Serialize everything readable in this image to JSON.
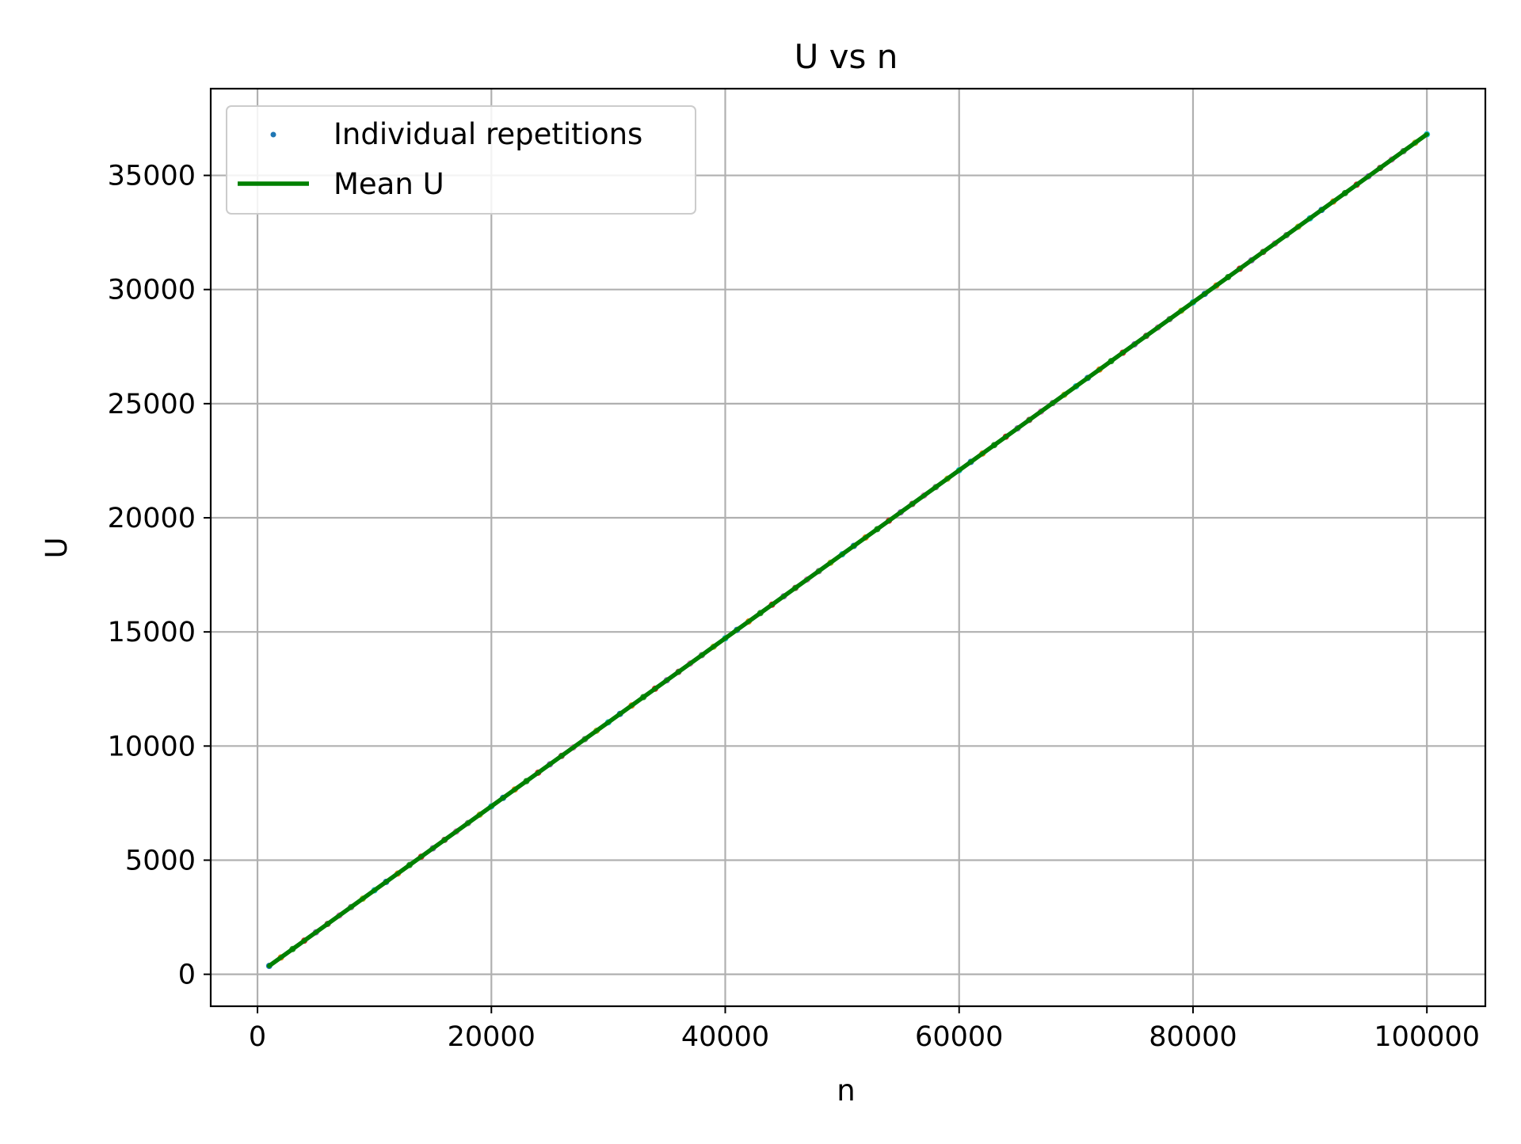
{
  "chart_data": {
    "type": "scatter",
    "title": "U vs n",
    "xlabel": "n",
    "ylabel": "U",
    "xlim": [
      -4000,
      105000
    ],
    "ylim": [
      -1400,
      38800
    ],
    "xticks": [
      0,
      20000,
      40000,
      60000,
      80000,
      100000
    ],
    "xtick_labels": [
      "0",
      "20000",
      "40000",
      "60000",
      "80000",
      "100000"
    ],
    "yticks": [
      0,
      5000,
      10000,
      15000,
      20000,
      25000,
      30000,
      35000
    ],
    "ytick_labels": [
      "0",
      "5000",
      "10000",
      "15000",
      "20000",
      "25000",
      "30000",
      "35000"
    ],
    "grid": true,
    "legend_position": "top-left",
    "legend": [
      "Individual repetitions",
      "Mean U"
    ],
    "series": [
      {
        "name": "Individual repetitions",
        "kind": "scatter",
        "color": "#1f77b4",
        "repetition_colors": [
          "#1f77b4",
          "#ff7f0e",
          "#2ca02c",
          "#d62728",
          "#9467bd",
          "#8c564b",
          "#e377c2",
          "#7f7f7f",
          "#bcbd22",
          "#17becf"
        ],
        "x": [
          1000,
          2000,
          3000,
          4000,
          5000,
          6000,
          7000,
          8000,
          9000,
          10000,
          11000,
          12000,
          13000,
          14000,
          15000,
          16000,
          17000,
          18000,
          19000,
          20000,
          21000,
          22000,
          23000,
          24000,
          25000,
          26000,
          27000,
          28000,
          29000,
          30000,
          31000,
          32000,
          33000,
          34000,
          35000,
          36000,
          37000,
          38000,
          39000,
          40000,
          41000,
          42000,
          43000,
          44000,
          45000,
          46000,
          47000,
          48000,
          49000,
          50000,
          51000,
          52000,
          53000,
          54000,
          55000,
          56000,
          57000,
          58000,
          59000,
          60000,
          61000,
          62000,
          63000,
          64000,
          65000,
          66000,
          67000,
          68000,
          69000,
          70000,
          71000,
          72000,
          73000,
          74000,
          75000,
          76000,
          77000,
          78000,
          79000,
          80000,
          81000,
          82000,
          83000,
          84000,
          85000,
          86000,
          87000,
          88000,
          89000,
          90000,
          91000,
          92000,
          93000,
          94000,
          95000,
          96000,
          97000,
          98000,
          99000,
          100000
        ],
        "y": [
          368,
          736,
          1104,
          1473,
          1840,
          2208,
          2577,
          2944,
          3312,
          3680,
          4048,
          4416,
          4785,
          5152,
          5520,
          5889,
          6256,
          6624,
          6992,
          7360,
          7729,
          8096,
          8464,
          8833,
          9200,
          9568,
          9937,
          10304,
          10672,
          11040,
          11409,
          11776,
          12144,
          12513,
          12880,
          13248,
          13617,
          13984,
          14352,
          14720,
          15089,
          15456,
          15824,
          16193,
          16560,
          16928,
          17297,
          17664,
          18032,
          18400,
          18769,
          19136,
          19504,
          19873,
          20240,
          20608,
          20977,
          21344,
          21712,
          22080,
          22449,
          22816,
          23184,
          23553,
          23920,
          24288,
          24657,
          25024,
          25392,
          25760,
          26129,
          26496,
          26864,
          27233,
          27600,
          27968,
          28337,
          28704,
          29072,
          29440,
          29809,
          30176,
          30544,
          30913,
          31280,
          31648,
          32017,
          32384,
          32752,
          33120,
          33489,
          33856,
          34224,
          34593,
          34960,
          35328,
          35697,
          36064,
          36432,
          36800
        ]
      },
      {
        "name": "Mean U",
        "kind": "line",
        "color": "#008000",
        "x": [
          1000,
          100000
        ],
        "y": [
          368,
          36800
        ]
      }
    ]
  }
}
